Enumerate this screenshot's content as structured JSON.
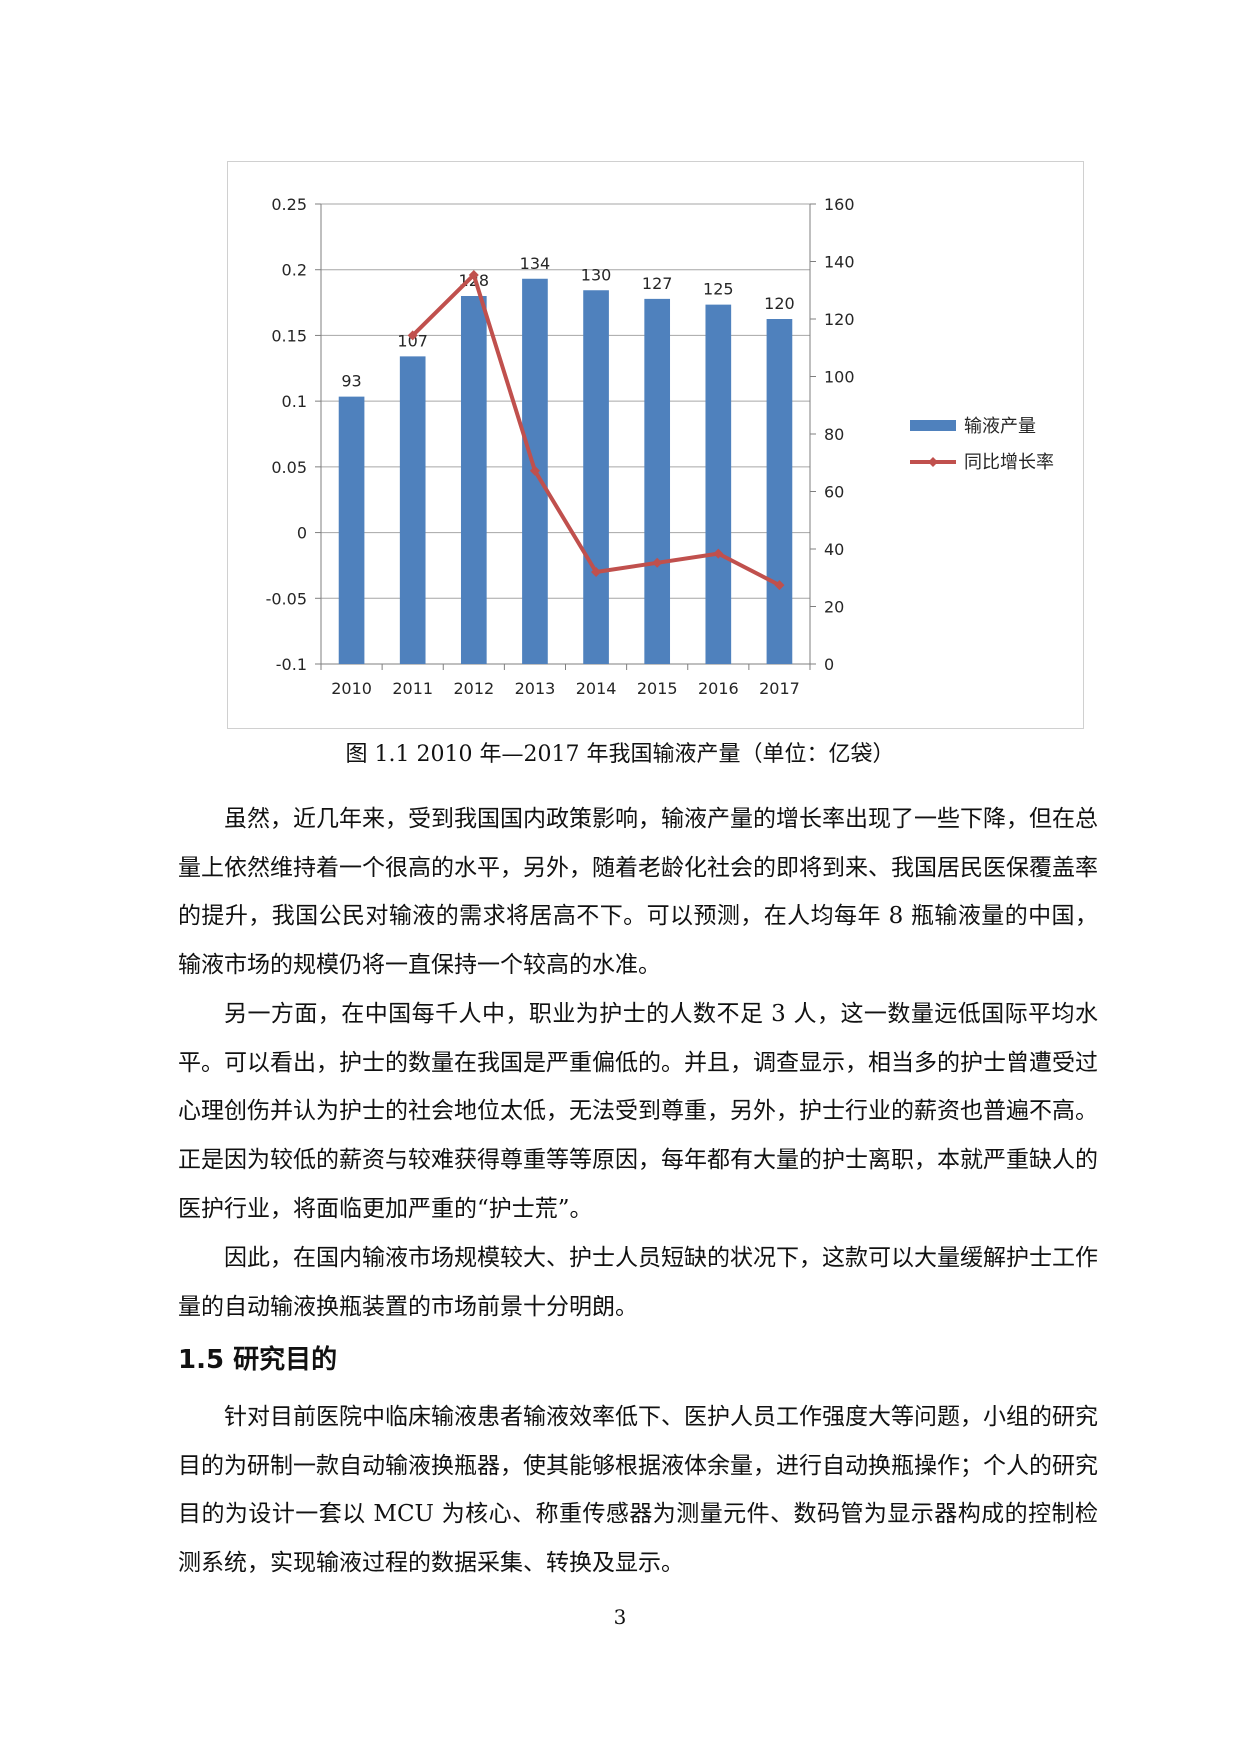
{
  "chart_data": {
    "type": "bar",
    "categories": [
      "2010",
      "2011",
      "2012",
      "2013",
      "2014",
      "2015",
      "2016",
      "2017"
    ],
    "series": [
      {
        "name": "输液产量",
        "type": "bar",
        "axis": "right",
        "values": [
          93,
          107,
          128,
          134,
          130,
          127,
          125,
          120
        ],
        "color": "#4f81bd"
      },
      {
        "name": "同比增长率",
        "type": "line",
        "axis": "left",
        "values": [
          null,
          0.15,
          0.196,
          0.047,
          -0.03,
          -0.023,
          -0.016,
          -0.04
        ],
        "color": "#c0504d"
      }
    ],
    "data_labels": [
      "93",
      "107",
      "128",
      "134",
      "130",
      "127",
      "125",
      "120"
    ],
    "left_axis": {
      "min": -0.1,
      "max": 0.25,
      "ticks": [
        "-0.1",
        "-0.05",
        "0",
        "0.05",
        "0.1",
        "0.15",
        "0.2",
        "0.25"
      ]
    },
    "right_axis": {
      "min": 0,
      "max": 160,
      "ticks": [
        "0",
        "20",
        "40",
        "60",
        "80",
        "100",
        "120",
        "140",
        "160"
      ]
    },
    "grid": true,
    "legend_position": "right"
  },
  "caption": "图 1.1   2010 年—2017 年我国输液产量（单位：亿袋）",
  "paragraphs": [
    "虽然，近几年来，受到我国国内政策影响，输液产量的增长率出现了一些下降，但在总量上依然维持着一个很高的水平，另外，随着老龄化社会的即将到来、我国居民医保覆盖率的提升，我国公民对输液的需求将居高不下。可以预测，在人均每年 8 瓶输液量的中国，输液市场的规模仍将一直保持一个较高的水准。",
    "另一方面，在中国每千人中，职业为护士的人数不足 3 人，这一数量远低国际平均水平。可以看出，护士的数量在我国是严重偏低的。并且，调查显示，相当多的护士曾遭受过心理创伤并认为护士的社会地位太低，无法受到尊重，另外，护士行业的薪资也普遍不高。正是因为较低的薪资与较难获得尊重等等原因，每年都有大量的护士离职，本就严重缺人的医护行业，将面临更加严重的“护士荒”。",
    "因此，在国内输液市场规模较大、护士人员短缺的状况下，这款可以大量缓解护士工作量的自动输液换瓶装置的市场前景十分明朗。"
  ],
  "section": {
    "title": "1.5 研究目的",
    "paragraph": "针对目前医院中临床输液患者输液效率低下、医护人员工作强度大等问题，小组的研究目的为研制一款自动输液换瓶器，使其能够根据液体余量，进行自动换瓶操作；个人的研究目的为设计一套以 MCU 为核心、称重传感器为测量元件、数码管为显示器构成的控制检测系统，实现输液过程的数据采集、转换及显示。"
  },
  "page_number": "3"
}
